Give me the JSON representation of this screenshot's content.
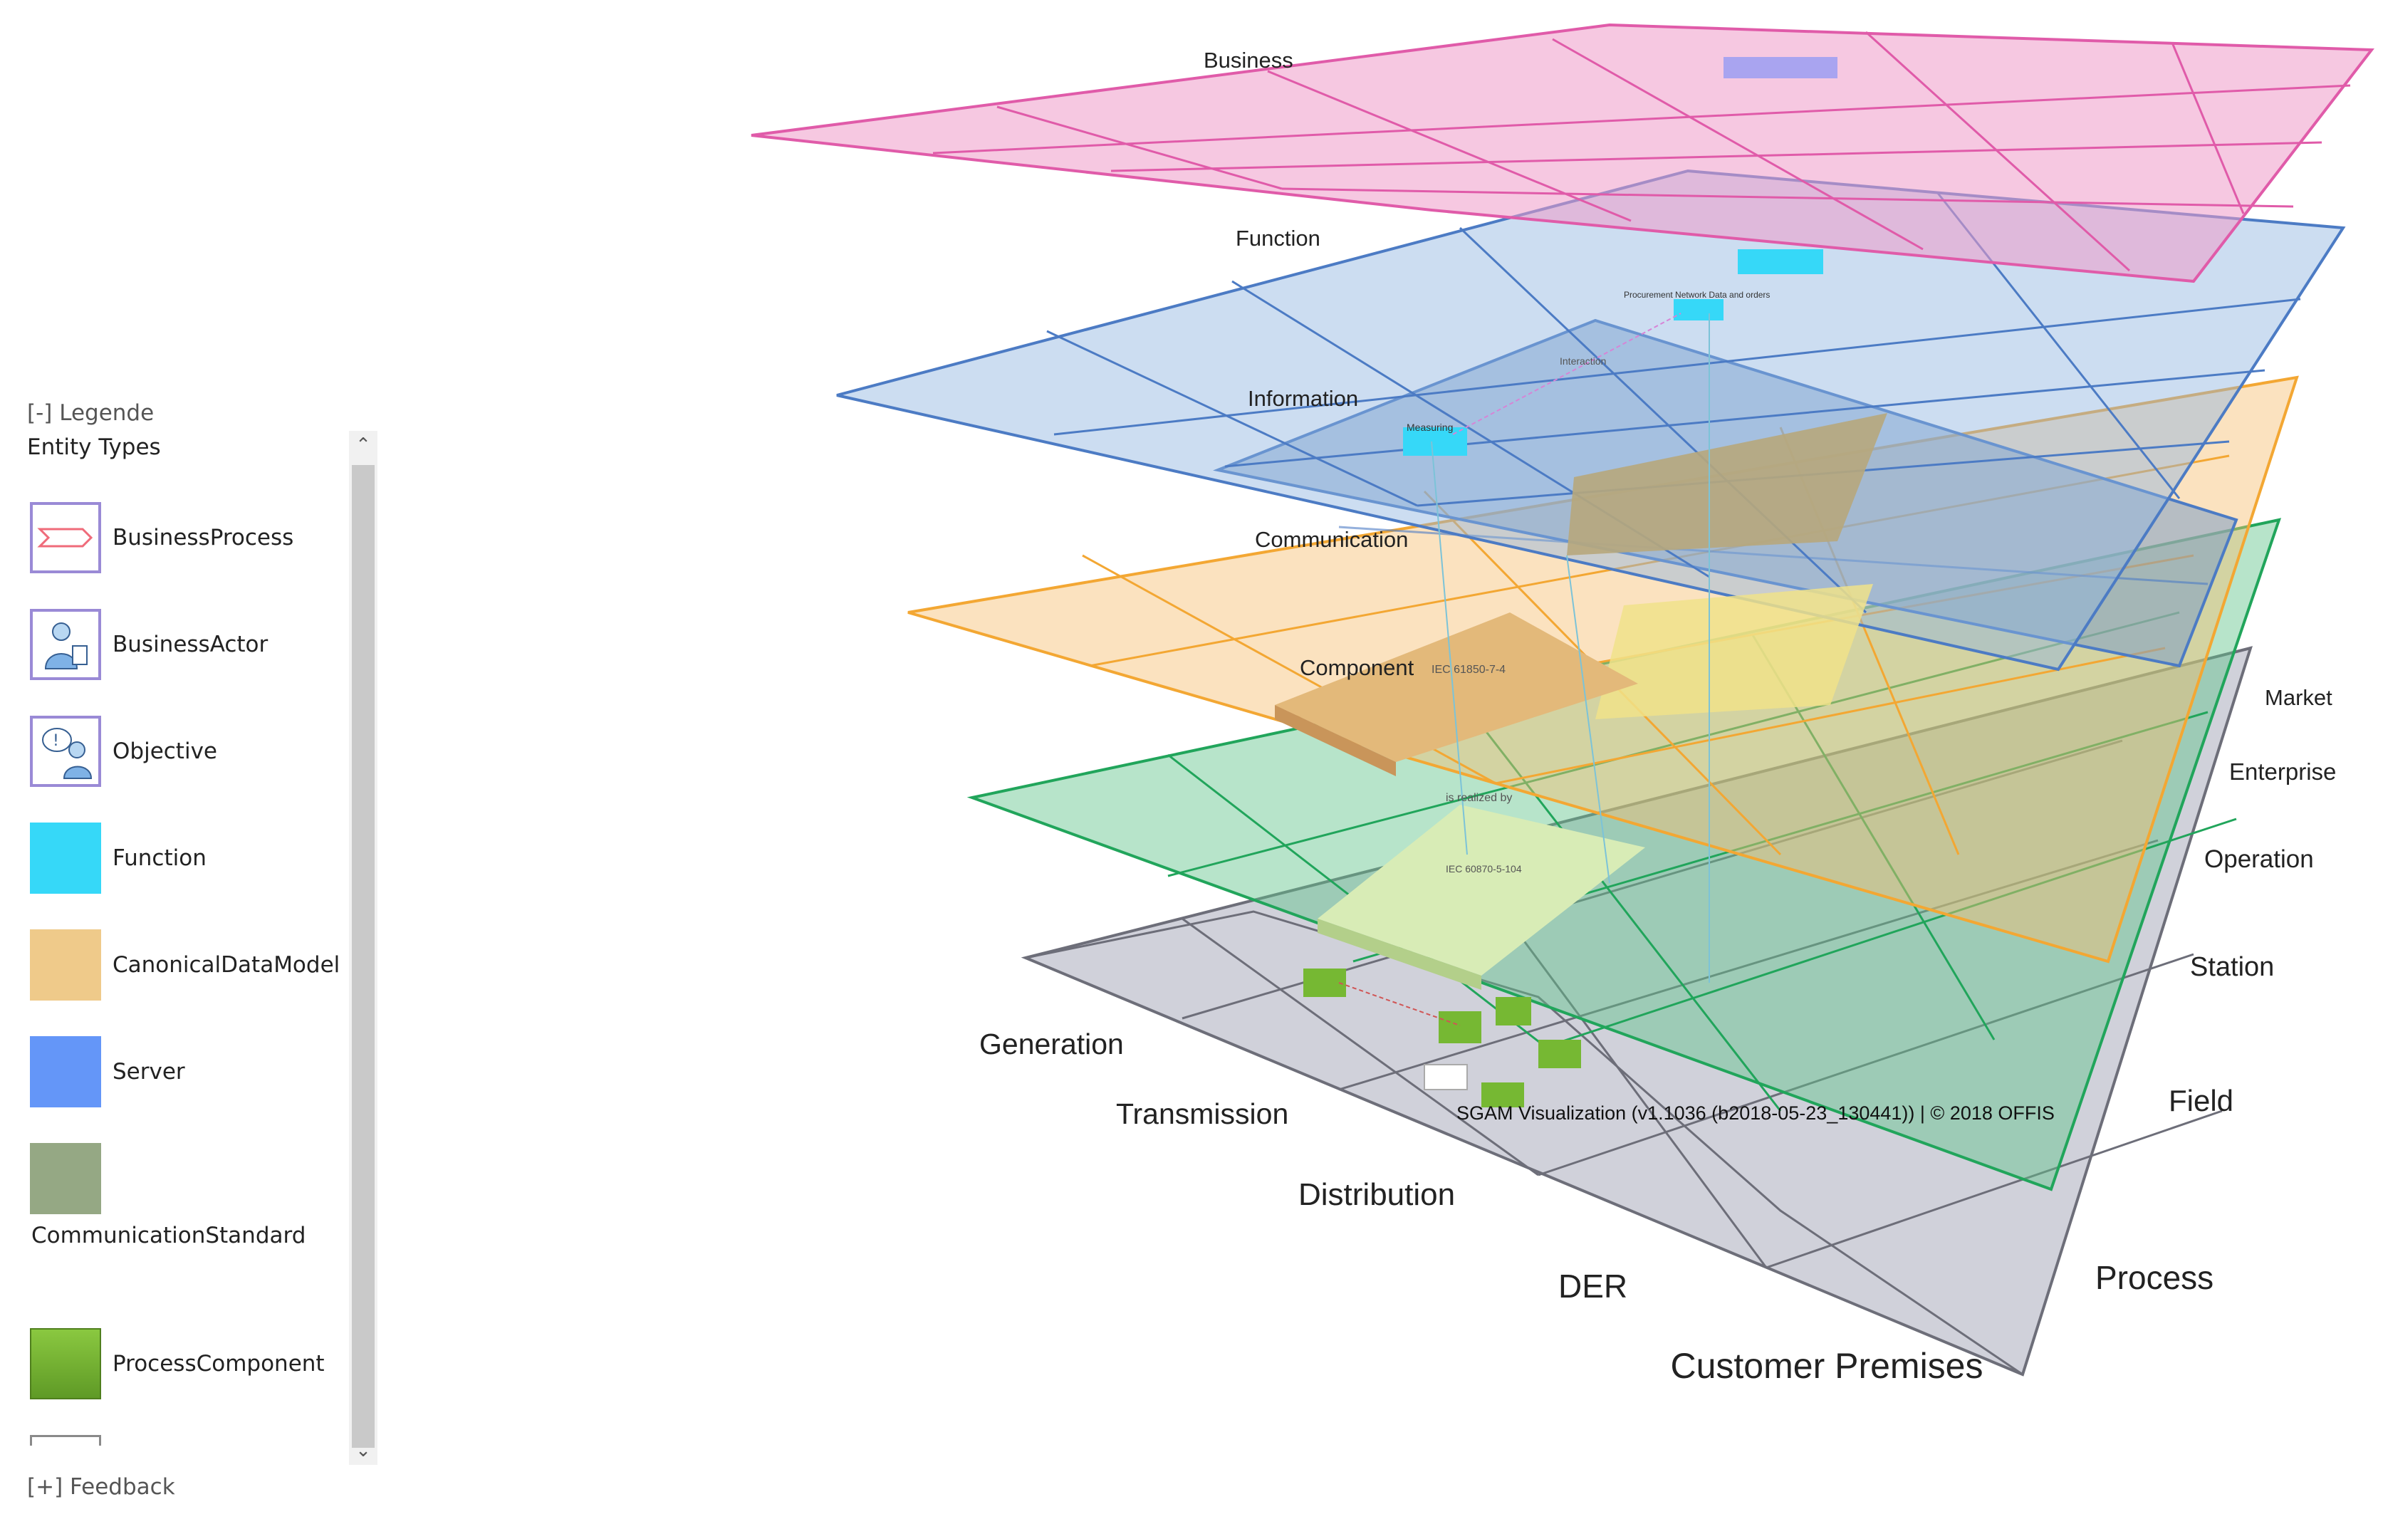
{
  "legend": {
    "toggle_label": "[-] Legende",
    "heading": "Entity Types",
    "items": [
      {
        "label": "BusinessProcess",
        "icon": "business-process-icon"
      },
      {
        "label": "BusinessActor",
        "icon": "business-actor-icon"
      },
      {
        "label": "Objective",
        "icon": "objective-icon"
      },
      {
        "label": "Function",
        "icon": "function-swatch",
        "color": "#36d8f8"
      },
      {
        "label": "CanonicalDataModel",
        "icon": "canonical-data-model-swatch",
        "color": "#efca8a"
      },
      {
        "label": "Server",
        "icon": "server-swatch",
        "color": "#6496f8"
      },
      {
        "label": "CommunicationStandard",
        "icon": "communication-standard-swatch",
        "color": "#95a884"
      },
      {
        "label": "ProcessComponent",
        "icon": "process-component-swatch",
        "color": "#6fae2d"
      }
    ],
    "feedback_label": "[+] Feedback",
    "scroll_up": "⌃",
    "scroll_down": "⌄"
  },
  "layers": [
    {
      "label": "Business",
      "color": "#e58cc2"
    },
    {
      "label": "Function",
      "color": "#5b8ccc"
    },
    {
      "label": "Information",
      "color": "#5b8ccc"
    },
    {
      "label": "Communication",
      "color": "#f3a733"
    },
    {
      "label": "Component",
      "color": "#2eb36b"
    }
  ],
  "domains": [
    "Generation",
    "Transmission",
    "Distribution",
    "DER",
    "Customer Premises"
  ],
  "zones": [
    "Market",
    "Enterprise",
    "Operation",
    "Station",
    "Field",
    "Process"
  ],
  "scene_labels": {
    "iec_label": "IEC 61850-7-4",
    "realized_by": "is realized by",
    "iec_label_2": "IEC 60870-5-104",
    "interaction": "Interaction",
    "measuring": "Measuring",
    "procurement": "Procurement Network Data and orders"
  },
  "version_text": "SGAM Visualization (v1.1036 (b2018-05-23_130441)) | © 2018 OFFIS"
}
